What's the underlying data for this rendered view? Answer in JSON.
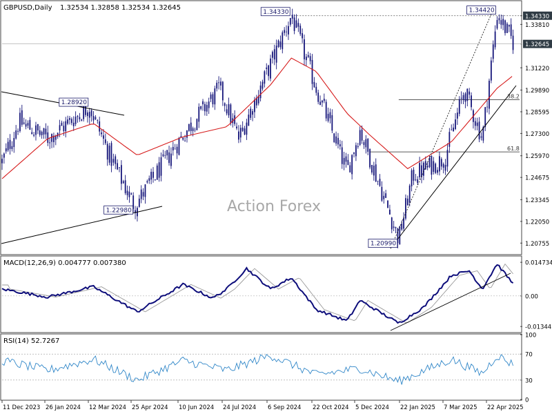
{
  "header": {
    "symbol": "GBPUSD,Daily",
    "ohlc": "1.32534 1.32858 1.32534 1.32645"
  },
  "watermark": "Action Forex",
  "colors": {
    "candle": "#15157a",
    "ema": "#d61a1a",
    "macd_line": "#0c0c7a",
    "macd_signal": "#9a9a9a",
    "rsi": "#2f86c8",
    "trendline": "#000000",
    "price_tag_bg": "#2f3b44"
  },
  "chart_data": [
    {
      "type": "candlestick",
      "panel": "price",
      "ylim": [
        1.2015,
        1.3502
      ],
      "y_ticks": [
        "1.34330",
        "1.33810",
        "1.32645",
        "1.31220",
        "1.29890",
        "1.28595",
        "1.27300",
        "1.25970",
        "1.24675",
        "1.23345",
        "1.22050",
        "1.20755"
      ],
      "current_price_label": "1.32645",
      "x_ticks": [
        "11 Dec 2023",
        "26 Jan 2024",
        "12 Mar 2024",
        "25 Apr 2024",
        "10 Jun 2024",
        "24 Jul 2024",
        "6 Sep 2024",
        "22 Oct 2024",
        "5 Dec 2024",
        "22 Jan 2025",
        "7 Mar 2025",
        "22 Apr 2025"
      ],
      "key_points": [
        {
          "date": "2023-12-11",
          "close": 1.256
        },
        {
          "date": "2023-12-28",
          "close": 1.28
        },
        {
          "date": "2024-01-26",
          "close": 1.27
        },
        {
          "date": "2024-03-08",
          "close": 1.2892
        },
        {
          "date": "2024-03-28",
          "close": 1.26
        },
        {
          "date": "2024-04-22",
          "close": 1.2298
        },
        {
          "date": "2024-06-10",
          "close": 1.272
        },
        {
          "date": "2024-07-17",
          "close": 1.3
        },
        {
          "date": "2024-08-05",
          "close": 1.27
        },
        {
          "date": "2024-09-27",
          "close": 1.3433
        },
        {
          "date": "2024-10-22",
          "close": 1.3
        },
        {
          "date": "2024-11-22",
          "close": 1.25
        },
        {
          "date": "2024-12-05",
          "close": 1.275
        },
        {
          "date": "2025-01-13",
          "close": 1.2099
        },
        {
          "date": "2025-01-27",
          "close": 1.248
        },
        {
          "date": "2025-02-28",
          "close": 1.258
        },
        {
          "date": "2025-03-20",
          "close": 1.299
        },
        {
          "date": "2025-04-07",
          "close": 1.27
        },
        {
          "date": "2025-04-22",
          "close": 1.3442
        },
        {
          "date": "2025-05-09",
          "close": 1.3264
        }
      ],
      "ema_points": [
        {
          "date": "2023-12-11",
          "value": 1.246
        },
        {
          "date": "2024-01-26",
          "value": 1.27
        },
        {
          "date": "2024-03-12",
          "value": 1.279
        },
        {
          "date": "2024-04-25",
          "value": 1.26
        },
        {
          "date": "2024-06-10",
          "value": 1.271
        },
        {
          "date": "2024-07-24",
          "value": 1.277
        },
        {
          "date": "2024-09-06",
          "value": 1.302
        },
        {
          "date": "2024-09-27",
          "value": 1.318
        },
        {
          "date": "2024-10-22",
          "value": 1.31
        },
        {
          "date": "2024-11-22",
          "value": 1.285
        },
        {
          "date": "2024-12-15",
          "value": 1.272
        },
        {
          "date": "2025-01-22",
          "value": 1.252
        },
        {
          "date": "2025-03-07",
          "value": 1.268
        },
        {
          "date": "2025-04-22",
          "value": 1.3
        },
        {
          "date": "2025-05-09",
          "value": 1.308
        }
      ],
      "annotations": [
        {
          "label": "1.34330",
          "date": "2024-09-27",
          "value": 1.3433
        },
        {
          "label": "1.28920",
          "date": "2024-03-08",
          "value": 1.2892
        },
        {
          "label": "1.22980",
          "date": "2024-04-22",
          "value": 1.2298
        },
        {
          "label": "1.20990",
          "date": "2025-01-13",
          "value": 1.2099
        },
        {
          "label": "1.34420",
          "date": "2025-04-22",
          "value": 1.3442
        }
      ],
      "fib_levels": [
        {
          "label": "38.2",
          "value": 1.2932
        },
        {
          "label": "61.8",
          "value": 1.262
        }
      ]
    },
    {
      "type": "line",
      "panel": "macd",
      "label": "MACD(12,26,9) 0.004777 0.007380",
      "ylim": [
        -0.0158,
        0.0172
      ],
      "y_ticks": [
        "0.014734",
        "0.00",
        "-0.013442"
      ],
      "macd_points": [
        {
          "date": "2023-12-11",
          "value": 0.003
        },
        {
          "date": "2024-01-26",
          "value": -0.0005
        },
        {
          "date": "2024-03-12",
          "value": 0.004
        },
        {
          "date": "2024-04-25",
          "value": -0.007
        },
        {
          "date": "2024-06-10",
          "value": 0.005
        },
        {
          "date": "2024-07-10",
          "value": -0.001
        },
        {
          "date": "2024-07-24",
          "value": 0.003
        },
        {
          "date": "2024-08-13",
          "value": 0.012
        },
        {
          "date": "2024-09-06",
          "value": 0.003
        },
        {
          "date": "2024-09-27",
          "value": 0.008
        },
        {
          "date": "2024-10-22",
          "value": -0.006
        },
        {
          "date": "2024-11-22",
          "value": -0.011
        },
        {
          "date": "2024-12-05",
          "value": -0.002
        },
        {
          "date": "2025-01-13",
          "value": -0.012
        },
        {
          "date": "2025-02-07",
          "value": -0.005
        },
        {
          "date": "2025-03-07",
          "value": 0.009
        },
        {
          "date": "2025-03-25",
          "value": 0.011
        },
        {
          "date": "2025-04-07",
          "value": 0.003
        },
        {
          "date": "2025-04-22",
          "value": 0.014
        },
        {
          "date": "2025-05-09",
          "value": 0.0048
        }
      ]
    },
    {
      "type": "line",
      "panel": "rsi",
      "label": "RSI(14) 52.7267",
      "ylim": [
        0,
        100
      ],
      "y_ticks": [
        "100",
        "70",
        "30",
        "0"
      ],
      "rsi_points": [
        {
          "date": "2023-12-11",
          "value": 60
        },
        {
          "date": "2024-01-26",
          "value": 45
        },
        {
          "date": "2024-03-12",
          "value": 62
        },
        {
          "date": "2024-04-25",
          "value": 30
        },
        {
          "date": "2024-06-10",
          "value": 60
        },
        {
          "date": "2024-07-24",
          "value": 45
        },
        {
          "date": "2024-09-06",
          "value": 68
        },
        {
          "date": "2024-10-22",
          "value": 38
        },
        {
          "date": "2024-12-05",
          "value": 48
        },
        {
          "date": "2025-01-13",
          "value": 28
        },
        {
          "date": "2025-03-07",
          "value": 62
        },
        {
          "date": "2025-04-07",
          "value": 40
        },
        {
          "date": "2025-04-22",
          "value": 68
        },
        {
          "date": "2025-05-09",
          "value": 53
        }
      ]
    }
  ]
}
